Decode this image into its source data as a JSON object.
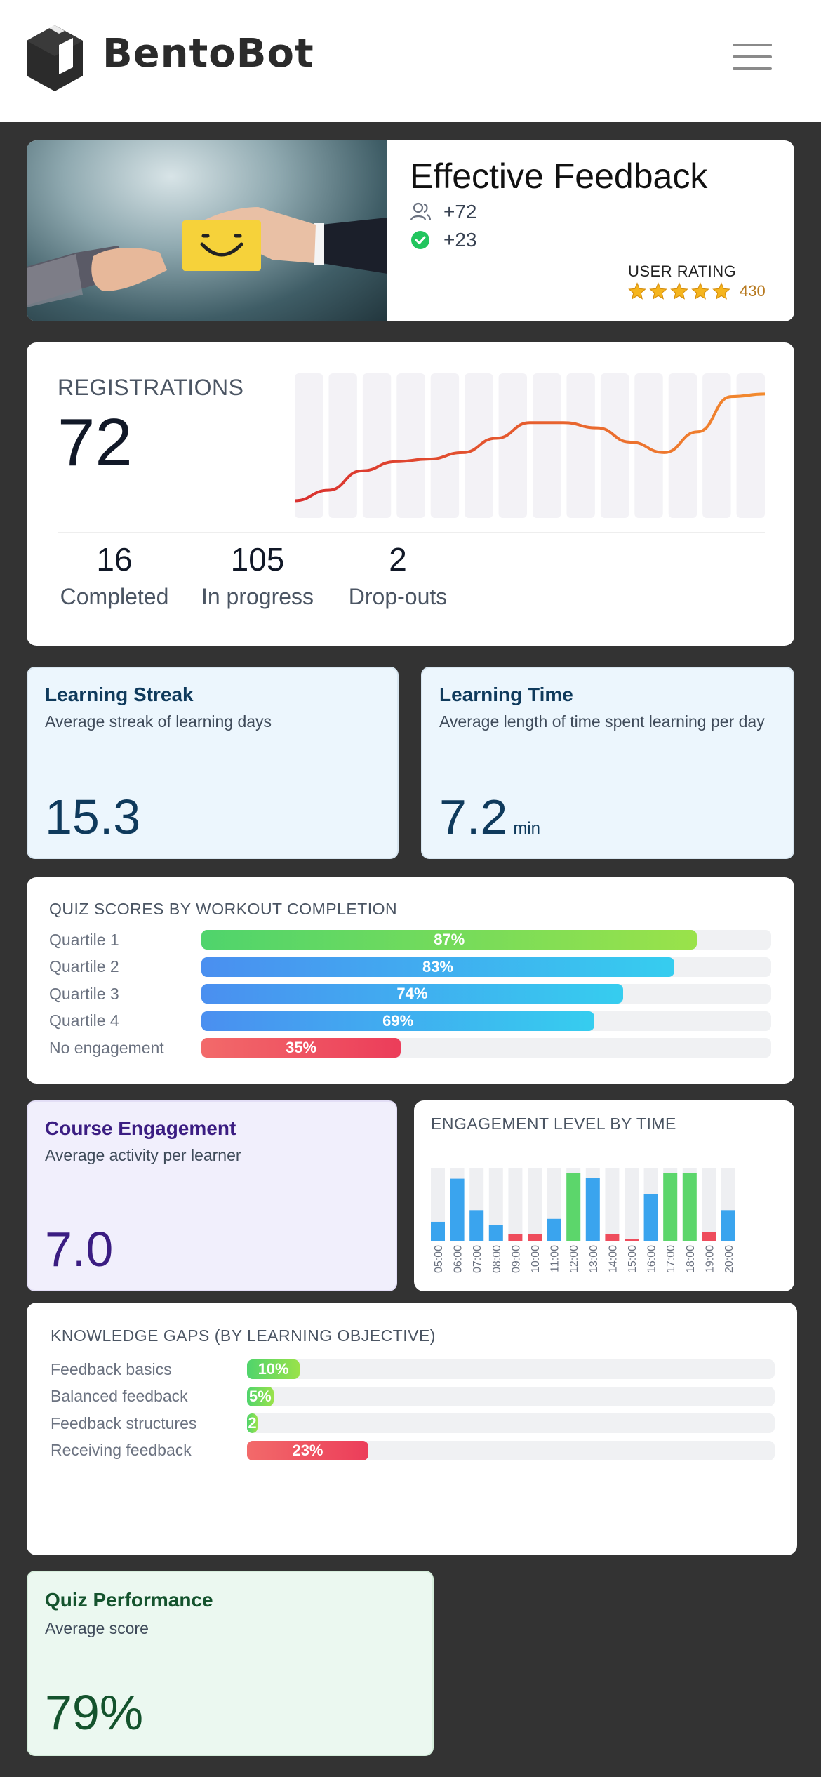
{
  "app": {
    "brand": "BentoBot"
  },
  "course": {
    "title": "Effective Feedback",
    "learners_delta": "+72",
    "completed_delta": "+23",
    "rating_label": "USER RATING",
    "rating_stars": 5,
    "rating_count": "430"
  },
  "registrations": {
    "label": "REGISTRATIONS",
    "value": "72",
    "stats": [
      {
        "value": "16",
        "label": "Completed"
      },
      {
        "value": "105",
        "label": "In progress"
      },
      {
        "value": "2",
        "label": "Drop-outs"
      }
    ]
  },
  "learning_streak": {
    "title": "Learning Streak",
    "subtitle": "Average streak of learning days",
    "value": "15.3"
  },
  "learning_time": {
    "title": "Learning Time",
    "subtitle": "Average length of time spent learning per day",
    "value": "7.2",
    "unit": "min"
  },
  "quiz_scores": {
    "title": "QUIZ SCORES BY WORKOUT COMPLETION",
    "rows": [
      {
        "label": "Quartile 1",
        "value": 87,
        "text": "87%",
        "color": "green"
      },
      {
        "label": "Quartile 2",
        "value": 83,
        "text": "83%",
        "color": "blue"
      },
      {
        "label": "Quartile 3",
        "value": 74,
        "text": "74%",
        "color": "blue"
      },
      {
        "label": "Quartile 4",
        "value": 69,
        "text": "69%",
        "color": "blue"
      },
      {
        "label": "No engagement",
        "value": 35,
        "text": "35%",
        "color": "red"
      }
    ]
  },
  "course_engagement": {
    "title": "Course Engagement",
    "subtitle": "Average activity per learner",
    "value": "7.0"
  },
  "engagement_time": {
    "title": "ENGAGEMENT LEVEL BY TIME",
    "hours": [
      "05:00",
      "06:00",
      "07:00",
      "08:00",
      "09:00",
      "10:00",
      "11:00",
      "12:00",
      "13:00",
      "14:00",
      "15:00",
      "16:00",
      "17:00",
      "18:00",
      "19:00",
      "20:00"
    ],
    "levels": [
      0.26,
      0.85,
      0.42,
      0.22,
      0.09,
      0.09,
      0.3,
      0.93,
      0.86,
      0.09,
      0.02,
      0.64,
      0.93,
      0.93,
      0.12,
      0.42
    ],
    "kinds": [
      "blue",
      "blue",
      "blue",
      "blue",
      "red",
      "red",
      "blue",
      "green",
      "blue",
      "red",
      "red",
      "blue",
      "green",
      "green",
      "red",
      "blue"
    ]
  },
  "knowledge_gaps": {
    "title": "KNOWLEDGE GAPS (BY LEARNING OBJECTIVE)",
    "rows": [
      {
        "label": "Feedback basics",
        "value": 10,
        "text": "10%",
        "color": "green"
      },
      {
        "label": "Balanced feedback",
        "value": 5,
        "text": "5%",
        "color": "green"
      },
      {
        "label": "Feedback structures",
        "value": 2,
        "text": "2",
        "color": "green"
      },
      {
        "label": "Receiving feedback",
        "value": 23,
        "text": "23%",
        "color": "red"
      }
    ]
  },
  "quiz_performance": {
    "title": "Quiz Performance",
    "subtitle": "Average score",
    "value": "79%"
  },
  "colors": {
    "green": "#5cd66b",
    "blue": "#3aa4ee",
    "red": "#ee4c5c",
    "orange": "#ef7d2c",
    "star": "#f5b51e"
  },
  "chart_data": [
    {
      "type": "line",
      "sparkline": true,
      "values": [
        0.1,
        0.18,
        0.33,
        0.4,
        0.42,
        0.47,
        0.58,
        0.7,
        0.7,
        0.66,
        0.55,
        0.47,
        0.63,
        0.9,
        0.92
      ]
    },
    {
      "type": "bar",
      "title": "QUIZ SCORES BY WORKOUT COMPLETION",
      "categories": [
        "Quartile 1",
        "Quartile 2",
        "Quartile 3",
        "Quartile 4",
        "No engagement"
      ],
      "values": [
        87,
        83,
        74,
        69,
        35
      ]
    },
    {
      "type": "bar",
      "title": "ENGAGEMENT LEVEL BY TIME",
      "categories": [
        "05:00",
        "06:00",
        "07:00",
        "08:00",
        "09:00",
        "10:00",
        "11:00",
        "12:00",
        "13:00",
        "14:00",
        "15:00",
        "16:00",
        "17:00",
        "18:00",
        "19:00",
        "20:00"
      ],
      "values": [
        0.26,
        0.85,
        0.42,
        0.22,
        0.09,
        0.09,
        0.3,
        0.93,
        0.86,
        0.09,
        0.02,
        0.64,
        0.93,
        0.93,
        0.12,
        0.42
      ],
      "ylim": [
        0,
        1
      ]
    },
    {
      "type": "bar",
      "title": "KNOWLEDGE GAPS (BY LEARNING OBJECTIVE)",
      "categories": [
        "Feedback basics",
        "Balanced feedback",
        "Feedback structures",
        "Receiving feedback"
      ],
      "values": [
        10,
        5,
        2,
        23
      ]
    }
  ]
}
